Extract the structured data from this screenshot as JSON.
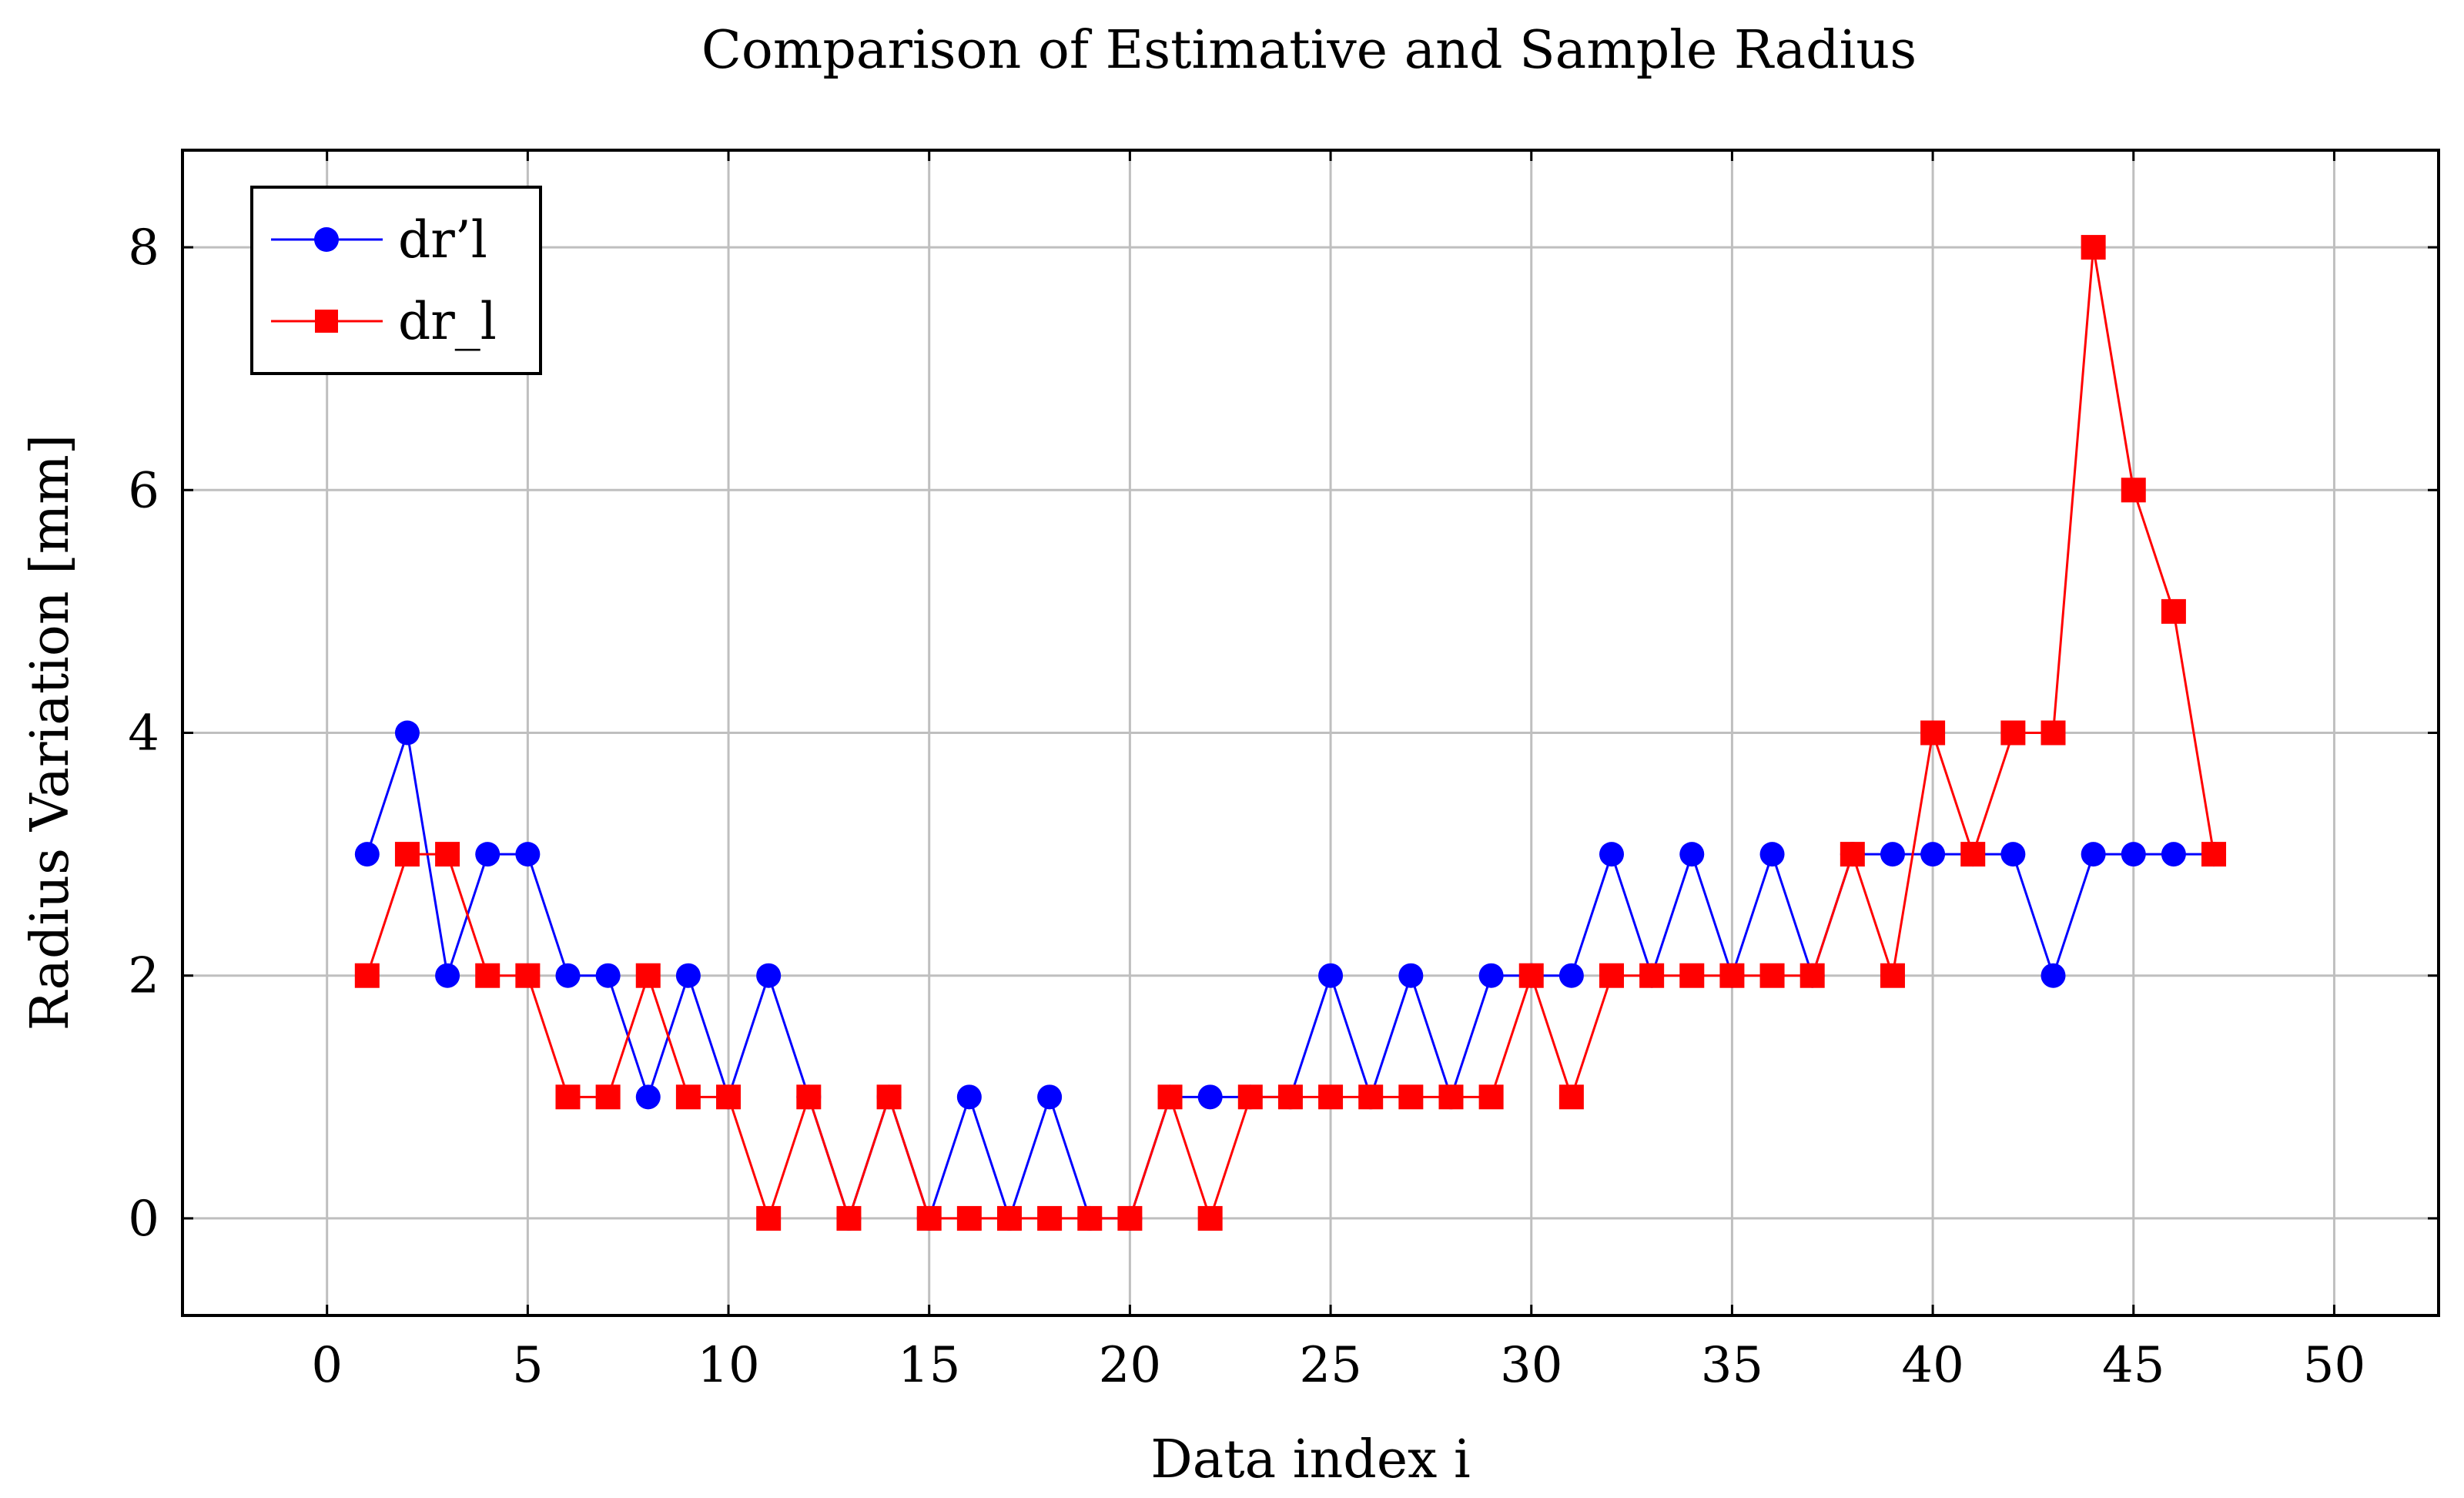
{
  "chart_data": {
    "type": "line",
    "title": "Comparison of Estimative and Sample Radius",
    "xlabel": "Data index i",
    "ylabel": "Radius Variation [mm]",
    "xlim": [
      -3.6,
      52.6
    ],
    "ylim": [
      -0.8,
      8.8
    ],
    "xticks": [
      0,
      5,
      10,
      15,
      20,
      25,
      30,
      35,
      40,
      45,
      50
    ],
    "yticks": [
      0,
      2,
      4,
      6,
      8
    ],
    "grid": true,
    "legend_position": "top-left",
    "x": [
      1,
      2,
      3,
      4,
      5,
      6,
      7,
      8,
      9,
      10,
      11,
      12,
      13,
      14,
      15,
      16,
      17,
      18,
      19,
      20,
      21,
      22,
      23,
      24,
      25,
      26,
      27,
      28,
      29,
      30,
      31,
      32,
      33,
      34,
      35,
      36,
      37,
      38,
      39,
      40,
      41,
      42,
      43,
      44,
      45,
      46,
      47
    ],
    "series": [
      {
        "name": "dr’l",
        "color": "#0000ff",
        "marker": "circle",
        "values": [
          3,
          4,
          2,
          3,
          3,
          2,
          2,
          1,
          2,
          1,
          2,
          1,
          0,
          1,
          0,
          1,
          0,
          1,
          0,
          0,
          1,
          1,
          1,
          1,
          2,
          1,
          2,
          1,
          2,
          2,
          2,
          3,
          2,
          3,
          2,
          3,
          2,
          3,
          3,
          3,
          3,
          3,
          2,
          3,
          3,
          3,
          3
        ]
      },
      {
        "name": "dr_l",
        "color": "#ff0000",
        "marker": "square",
        "values": [
          2,
          3,
          3,
          2,
          2,
          1,
          1,
          2,
          1,
          1,
          0,
          1,
          0,
          1,
          0,
          0,
          0,
          0,
          0,
          0,
          1,
          0,
          1,
          1,
          1,
          1,
          1,
          1,
          1,
          2,
          1,
          2,
          2,
          2,
          2,
          2,
          2,
          3,
          2,
          4,
          3,
          4,
          4,
          8,
          6,
          5,
          3
        ]
      }
    ]
  }
}
